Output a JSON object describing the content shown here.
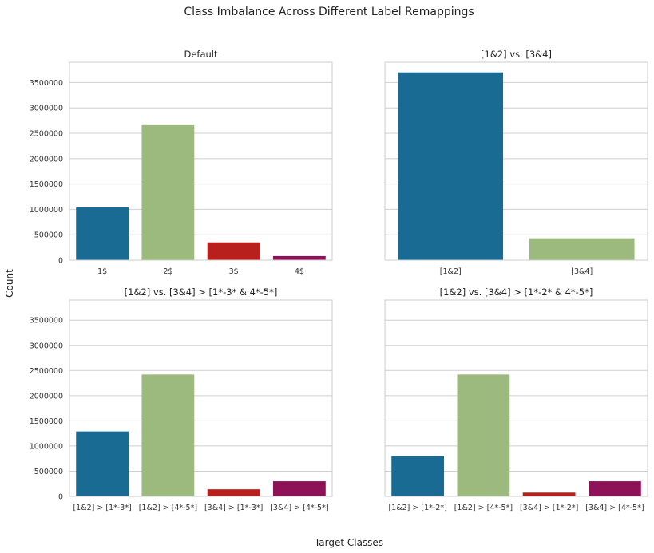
{
  "figure": {
    "suptitle": "Class Imbalance Across Different Label Remappings",
    "ylabel": "Count",
    "xlabel": "Target Classes"
  },
  "colors": [
    "#1a6b93",
    "#9cba7d",
    "#b8201d",
    "#8e1257"
  ],
  "chart_data": [
    {
      "type": "bar",
      "title": "Default",
      "categories": [
        "1$",
        "2$",
        "3$",
        "4$"
      ],
      "values": [
        1040000,
        2660000,
        350000,
        80000
      ],
      "ylim": [
        0,
        3900000
      ],
      "yticks": [
        0,
        500000,
        1000000,
        1500000,
        2000000,
        2500000,
        3000000,
        3500000
      ],
      "grid": true
    },
    {
      "type": "bar",
      "title": "[1&2] vs. [3&4]",
      "categories": [
        "[1&2]",
        "[3&4]"
      ],
      "values": [
        3700000,
        430000
      ],
      "ylim": [
        0,
        3900000
      ],
      "yticks": [
        0,
        500000,
        1000000,
        1500000,
        2000000,
        2500000,
        3000000,
        3500000
      ],
      "grid": true
    },
    {
      "type": "bar",
      "title": "[1&2] vs. [3&4] > [1*-3* & 4*-5*]",
      "categories": [
        "[1&2] > [1*-3*]",
        "[1&2] > [4*-5*]",
        "[3&4] > [1*-3*]",
        "[3&4] > [4*-5*]"
      ],
      "values": [
        1290000,
        2420000,
        140000,
        300000
      ],
      "ylim": [
        0,
        3900000
      ],
      "yticks": [
        0,
        500000,
        1000000,
        1500000,
        2000000,
        2500000,
        3000000,
        3500000
      ],
      "grid": true
    },
    {
      "type": "bar",
      "title": "[1&2] vs. [3&4] > [1*-2* & 4*-5*]",
      "categories": [
        "[1&2] > [1*-2*]",
        "[1&2] > [4*-5*]",
        "[3&4] > [1*-2*]",
        "[3&4] > [4*-5*]"
      ],
      "values": [
        800000,
        2420000,
        75000,
        300000
      ],
      "ylim": [
        0,
        3900000
      ],
      "yticks": [
        0,
        500000,
        1000000,
        1500000,
        2000000,
        2500000,
        3000000,
        3500000
      ],
      "grid": true
    }
  ]
}
